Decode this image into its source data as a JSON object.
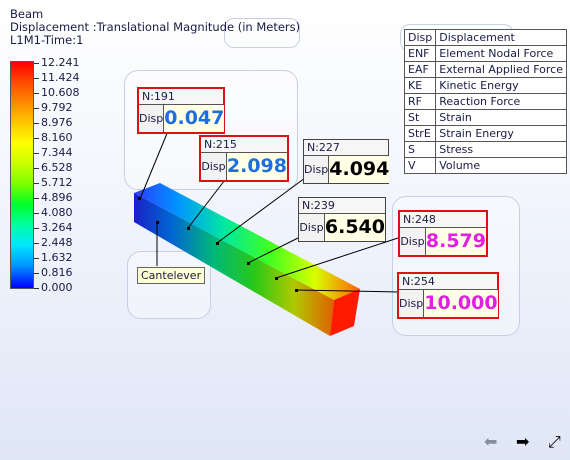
{
  "header": {
    "line1": "Beam",
    "line2": "Displacement :Translational Magnitude (in Meters)",
    "line3": "L1M1-Time:1"
  },
  "legend": {
    "ticks": [
      "12.241",
      "11.424",
      "10.608",
      "9.792",
      "8.976",
      "8.160",
      "7.344",
      "6.528",
      "5.712",
      "4.896",
      "4.080",
      "3.264",
      "2.448",
      "1.632",
      "0.816",
      "0.000"
    ]
  },
  "menu": [
    {
      "abbr": "Disp",
      "label": "Displacement"
    },
    {
      "abbr": "ENF",
      "label": "Element Nodal Force"
    },
    {
      "abbr": "EAF",
      "label": "External Applied Force"
    },
    {
      "abbr": "KE",
      "label": "Kinetic Energy"
    },
    {
      "abbr": "RF",
      "label": "Reaction Force"
    },
    {
      "abbr": "St",
      "label": "Strain"
    },
    {
      "abbr": "StrE",
      "label": "Strain Energy"
    },
    {
      "abbr": "S",
      "label": "Stress"
    },
    {
      "abbr": "V",
      "label": "Volume"
    }
  ],
  "tags": {
    "n191": {
      "node": "N:191",
      "key": "Disp",
      "value": "0.047"
    },
    "n215": {
      "node": "N:215",
      "key": "Disp",
      "value": "2.098"
    },
    "n227": {
      "node": "N:227",
      "key": "Disp",
      "value": "4.094"
    },
    "n239": {
      "node": "N:239",
      "key": "Disp",
      "value": "6.540"
    },
    "n248": {
      "node": "N:248",
      "key": "Disp",
      "value": "8.579"
    },
    "n254": {
      "node": "N:254",
      "key": "Disp",
      "value": "10.000"
    }
  },
  "beam": {
    "label": "Cantelever"
  },
  "nav": {
    "prev": "⬅",
    "next": "➡",
    "fit": "⤢"
  },
  "colors": {
    "tag_border": "#d11111",
    "blue_value": "#1e6ee0",
    "magenta_value": "#e020e0"
  }
}
